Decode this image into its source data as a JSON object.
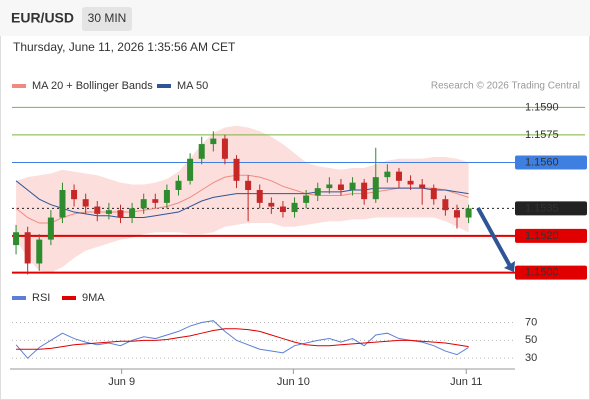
{
  "header": {
    "symbol": "EUR/USD",
    "interval": "30 MIN",
    "timestamp": "Thursday, June 11, 2026 1:35:56 AM CET",
    "credit": "Research © 2026 Trading Central"
  },
  "chart_data": [
    {
      "type": "candlestick",
      "xlim": [
        -0.35,
        43
      ],
      "xticks": [
        {
          "value": 9.1,
          "label": "Jun 9"
        },
        {
          "value": 23.9,
          "label": "Jun 10"
        },
        {
          "value": 38.8,
          "label": "Jun 11"
        }
      ],
      "ylim": [
        1.1496,
        1.1594
      ],
      "up_color": "#2e8b2e",
      "down_color": "#c62828",
      "open": [
        1.1515,
        1.1522,
        1.1505,
        1.1518,
        1.153,
        1.1545,
        1.154,
        1.1536,
        1.1532,
        1.1534,
        1.153,
        1.1535,
        1.154,
        1.1538,
        1.1545,
        1.155,
        1.1562,
        1.157,
        1.1573,
        1.1562,
        1.155,
        1.1545,
        1.1538,
        1.1536,
        1.1533,
        1.1538,
        1.1542,
        1.1546,
        1.1548,
        1.1545,
        1.1549,
        1.154,
        1.1552,
        1.1555,
        1.155,
        1.1548,
        1.1546,
        1.154,
        1.1534,
        1.153
      ],
      "high": [
        1.1526,
        1.1525,
        1.1521,
        1.1534,
        1.1549,
        1.1548,
        1.1543,
        1.1539,
        1.1538,
        1.1537,
        1.1538,
        1.1543,
        1.1543,
        1.1548,
        1.1553,
        1.1565,
        1.1574,
        1.1577,
        1.1575,
        1.1564,
        1.1553,
        1.1548,
        1.1541,
        1.1539,
        1.1541,
        1.1545,
        1.1549,
        1.1552,
        1.1551,
        1.1552,
        1.1551,
        1.1568,
        1.1559,
        1.1557,
        1.1553,
        1.1551,
        1.1548,
        1.1542,
        1.1537,
        1.1537
      ],
      "low": [
        1.151,
        1.1499,
        1.1501,
        1.1515,
        1.1527,
        1.1536,
        1.1532,
        1.1528,
        1.1529,
        1.1527,
        1.1527,
        1.1532,
        1.1535,
        1.1535,
        1.1542,
        1.1548,
        1.1559,
        1.1566,
        1.1559,
        1.1546,
        1.1528,
        1.1535,
        1.1532,
        1.153,
        1.153,
        1.1535,
        1.1539,
        1.1543,
        1.1542,
        1.1542,
        1.1537,
        1.1538,
        1.1549,
        1.1546,
        1.1545,
        1.1537,
        1.1537,
        1.1531,
        1.1524,
        1.1527
      ],
      "close": [
        1.1522,
        1.1505,
        1.1518,
        1.153,
        1.1545,
        1.154,
        1.1536,
        1.1532,
        1.1534,
        1.153,
        1.1535,
        1.154,
        1.1538,
        1.1545,
        1.155,
        1.1562,
        1.157,
        1.1573,
        1.1562,
        1.155,
        1.1545,
        1.1538,
        1.1536,
        1.1533,
        1.1538,
        1.1542,
        1.1546,
        1.1548,
        1.1545,
        1.1549,
        1.154,
        1.1552,
        1.1555,
        1.155,
        1.1548,
        1.1546,
        1.154,
        1.1534,
        1.153,
        1.1535
      ],
      "band": {
        "color": "#fbd3d0",
        "upper": [
          1.155,
          1.1552,
          1.1553,
          1.1554,
          1.1556,
          1.1555,
          1.1554,
          1.1553,
          1.1551,
          1.1549,
          1.1548,
          1.1548,
          1.1549,
          1.1551,
          1.1555,
          1.1562,
          1.157,
          1.1576,
          1.1579,
          1.158,
          1.1579,
          1.1577,
          1.1574,
          1.157,
          1.1565,
          1.156,
          1.1558,
          1.1557,
          1.1556,
          1.1557,
          1.1557,
          1.1559,
          1.1561,
          1.1562,
          1.1562,
          1.1562,
          1.1563,
          1.1563,
          1.1562,
          1.156
        ],
        "lower": [
          1.1518,
          1.1508,
          1.1501,
          1.15,
          1.1503,
          1.1508,
          1.1512,
          1.1514,
          1.1516,
          1.1518,
          1.1519,
          1.1521,
          1.1522,
          1.1522,
          1.1522,
          1.1521,
          1.1521,
          1.1522,
          1.1525,
          1.1526,
          1.1527,
          1.1527,
          1.1527,
          1.1525,
          1.1525,
          1.1526,
          1.1527,
          1.1528,
          1.1528,
          1.1529,
          1.1529,
          1.153,
          1.153,
          1.153,
          1.153,
          1.153,
          1.153,
          1.1528,
          1.1525,
          1.1522
        ]
      },
      "series": [
        {
          "name": "MA 20 + Bollinger Bands",
          "color": "#f08a80",
          "values": [
            1.1535,
            1.153,
            1.1527,
            1.1527,
            1.153,
            1.1532,
            1.1533,
            1.1533,
            1.1533,
            1.1533,
            1.1533,
            1.1534,
            1.1535,
            1.1536,
            1.1538,
            1.1541,
            1.1545,
            1.1549,
            1.1552,
            1.1553,
            1.1553,
            1.1552,
            1.155,
            1.1547,
            1.1545,
            1.1543,
            1.1542,
            1.1542,
            1.1542,
            1.1543,
            1.1543,
            1.1544,
            1.1545,
            1.1546,
            1.1546,
            1.1546,
            1.1546,
            1.1545,
            1.1543,
            1.1541
          ]
        },
        {
          "name": "MA 50",
          "color": "#2f5597",
          "values": [
            1.155,
            1.1545,
            1.154,
            1.1537,
            1.1535,
            1.1533,
            1.1532,
            1.1531,
            1.1531,
            1.153,
            1.153,
            1.153,
            1.1531,
            1.1532,
            1.1533,
            1.1536,
            1.1539,
            1.1541,
            1.1542,
            1.1543,
            1.1543,
            1.1543,
            1.1543,
            1.1543,
            1.1543,
            1.1543,
            1.1544,
            1.1544,
            1.1544,
            1.1545,
            1.1545,
            1.1546,
            1.1546,
            1.1546,
            1.1546,
            1.1546,
            1.1545,
            1.1545,
            1.1544,
            1.1543
          ]
        }
      ],
      "levels": [
        {
          "price": {
            "value": 1.159,
            "label": "1.1590"
          },
          "color": "#7cb342",
          "kind": "thin"
        },
        {
          "price": 1.1575,
          "color": "#7cb342",
          "kind": "thin"
        },
        {
          "price": {
            "value": 1.156,
            "label": "1.1560"
          },
          "color": "#3f7fe0",
          "kind": "box"
        },
        {
          "price": 1.1535,
          "color": "#222222",
          "kind": "dotted"
        },
        {
          "price": {
            "value": 1.152,
            "label": "1.1520"
          },
          "color": "#e00000",
          "kind": "thick"
        },
        {
          "price": {
            "value": 1.15,
            "label": "1.1500"
          },
          "color": "#e00000",
          "kind": "thick"
        }
      ]
    },
    {
      "type": "line",
      "ylim": [
        19,
        84
      ],
      "yticks": [
        30,
        50,
        70
      ],
      "series": [
        {
          "name": "RSI",
          "color": "#5b7fd6",
          "values": [
            45,
            30,
            42,
            50,
            58,
            52,
            48,
            45,
            47,
            44,
            50,
            54,
            52,
            56,
            60,
            66,
            70,
            72,
            60,
            50,
            45,
            40,
            38,
            36,
            44,
            47,
            50,
            52,
            48,
            52,
            44,
            56,
            58,
            52,
            50,
            48,
            44,
            38,
            34,
            42
          ]
        },
        {
          "name": "9MA",
          "color": "#e00000",
          "values": [
            40,
            40,
            40,
            41,
            43,
            45,
            46,
            47,
            48,
            49,
            49,
            50,
            50,
            51,
            53,
            55,
            58,
            61,
            63,
            63,
            62,
            60,
            56,
            52,
            48,
            45,
            44,
            44,
            45,
            46,
            47,
            48,
            49,
            50,
            50,
            49,
            48,
            47,
            45,
            43
          ]
        }
      ]
    }
  ]
}
